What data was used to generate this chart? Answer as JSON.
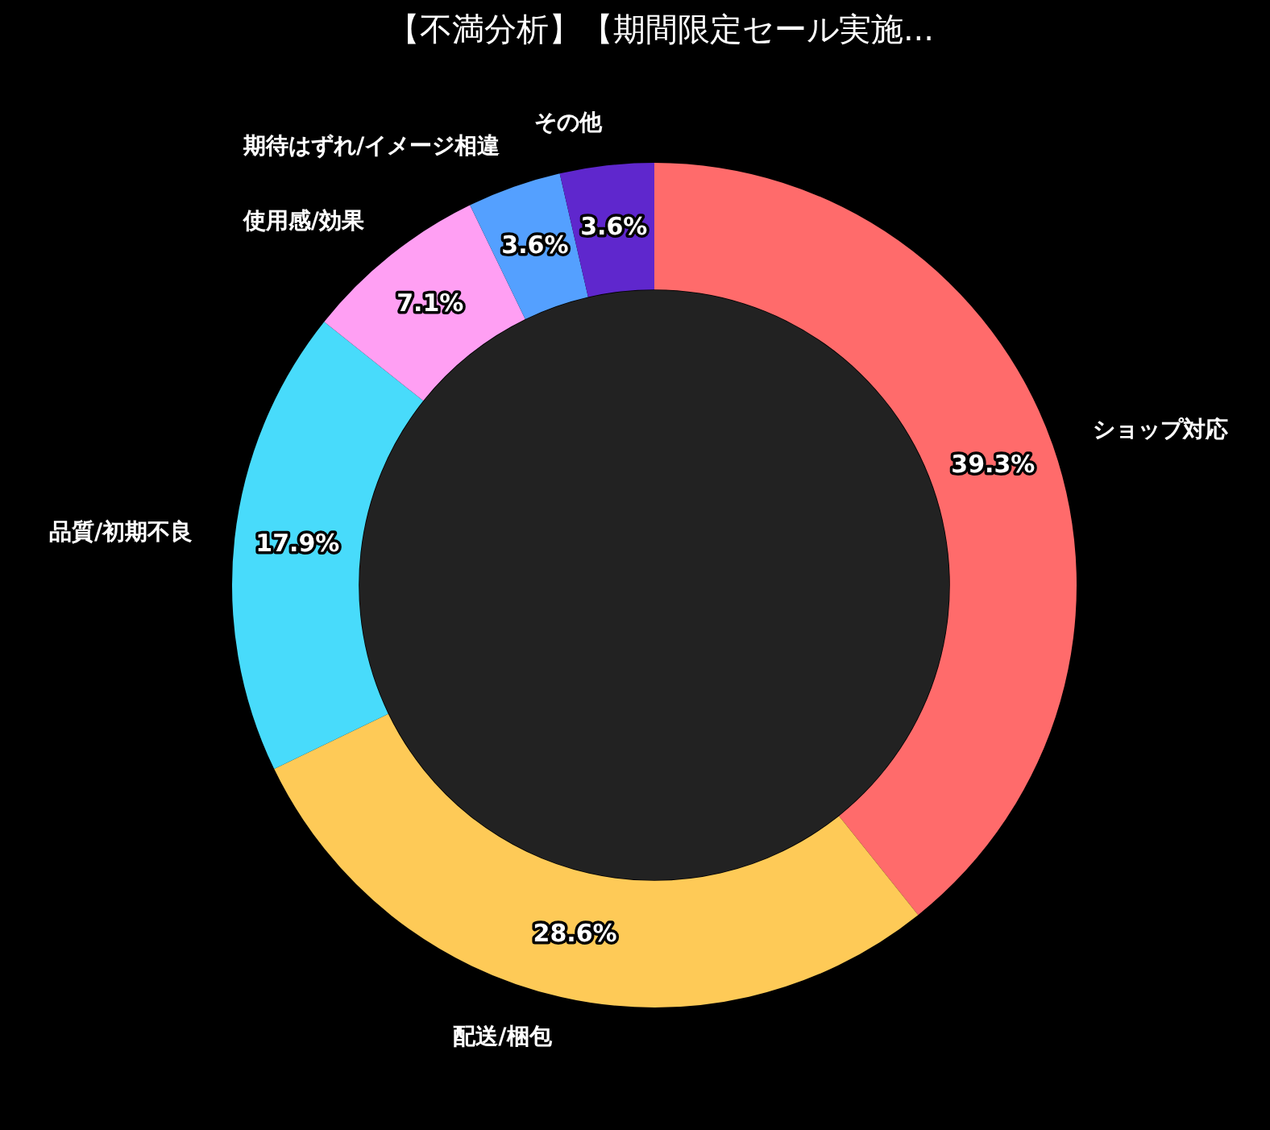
{
  "chart_data": {
    "type": "donut",
    "title": "【不満分析】【期間限定セール実施...",
    "categories": [
      "ショップ対応",
      "配送/梱包",
      "品質/初期不良",
      "使用感/効果",
      "期待はずれ/イメージ相違",
      "その他"
    ],
    "values": [
      39.3,
      28.6,
      17.9,
      7.1,
      3.6,
      3.6
    ],
    "colors": [
      "#ff6b6b",
      "#feca57",
      "#48dbfb",
      "#ff9ff3",
      "#54a0ff",
      "#5f27cd"
    ],
    "value_labels": [
      "39.3%",
      "28.6%",
      "17.9%",
      "7.1%",
      "3.6%",
      "3.6%"
    ],
    "legend": false
  }
}
